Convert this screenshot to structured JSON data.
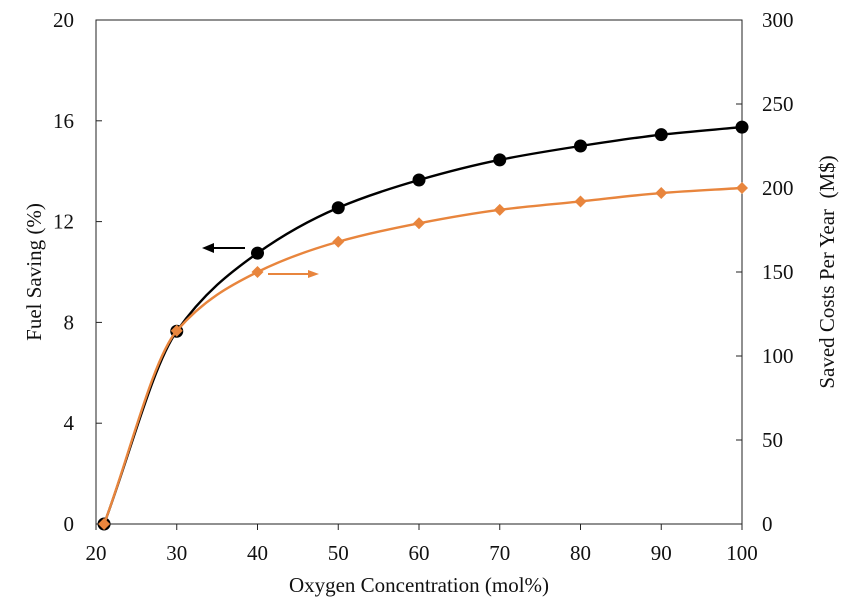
{
  "chart_data": {
    "type": "line",
    "xlabel": "Oxygen Concentration (mol%)",
    "ylabel": "Fuel Saving (%)",
    "y2label": "Saved Costs Per Year  (M$)",
    "xlim": [
      20,
      100
    ],
    "ylim": [
      0,
      20
    ],
    "y2lim": [
      0,
      300
    ],
    "xticks": [
      20,
      30,
      40,
      50,
      60,
      70,
      80,
      90,
      100
    ],
    "xtick_labels": [
      "20",
      "30",
      "40",
      "50",
      "60",
      "70",
      "80",
      "90",
      "100"
    ],
    "yticks": [
      0,
      4,
      8,
      12,
      16,
      20
    ],
    "ytick_labels": [
      "0",
      "4",
      "8",
      "12",
      "16",
      "20"
    ],
    "y2ticks": [
      0,
      50,
      100,
      150,
      200,
      250,
      300
    ],
    "y2tick_labels": [
      "0",
      "50",
      "100",
      "150",
      "200",
      "250",
      "300"
    ],
    "grid": false,
    "legend": "none",
    "series": [
      {
        "axis": "left",
        "color": "#000000",
        "marker": "circle",
        "x": [
          21,
          30,
          40,
          50,
          60,
          70,
          80,
          90,
          100
        ],
        "y": [
          0,
          7.65,
          10.75,
          12.55,
          13.65,
          14.45,
          15.0,
          15.45,
          15.75
        ]
      },
      {
        "axis": "right",
        "color": "#E8853D",
        "marker": "diamond",
        "x": [
          21,
          30,
          40,
          50,
          60,
          70,
          80,
          90,
          100
        ],
        "y": [
          0,
          115,
          150,
          168,
          179,
          187,
          192,
          197,
          200
        ]
      }
    ],
    "annotations": [
      {
        "type": "arrow",
        "direction": "left",
        "points_to": "left-axis",
        "color": "#000000"
      },
      {
        "type": "arrow",
        "direction": "right",
        "points_to": "right-axis",
        "color": "#E8853D"
      }
    ]
  }
}
